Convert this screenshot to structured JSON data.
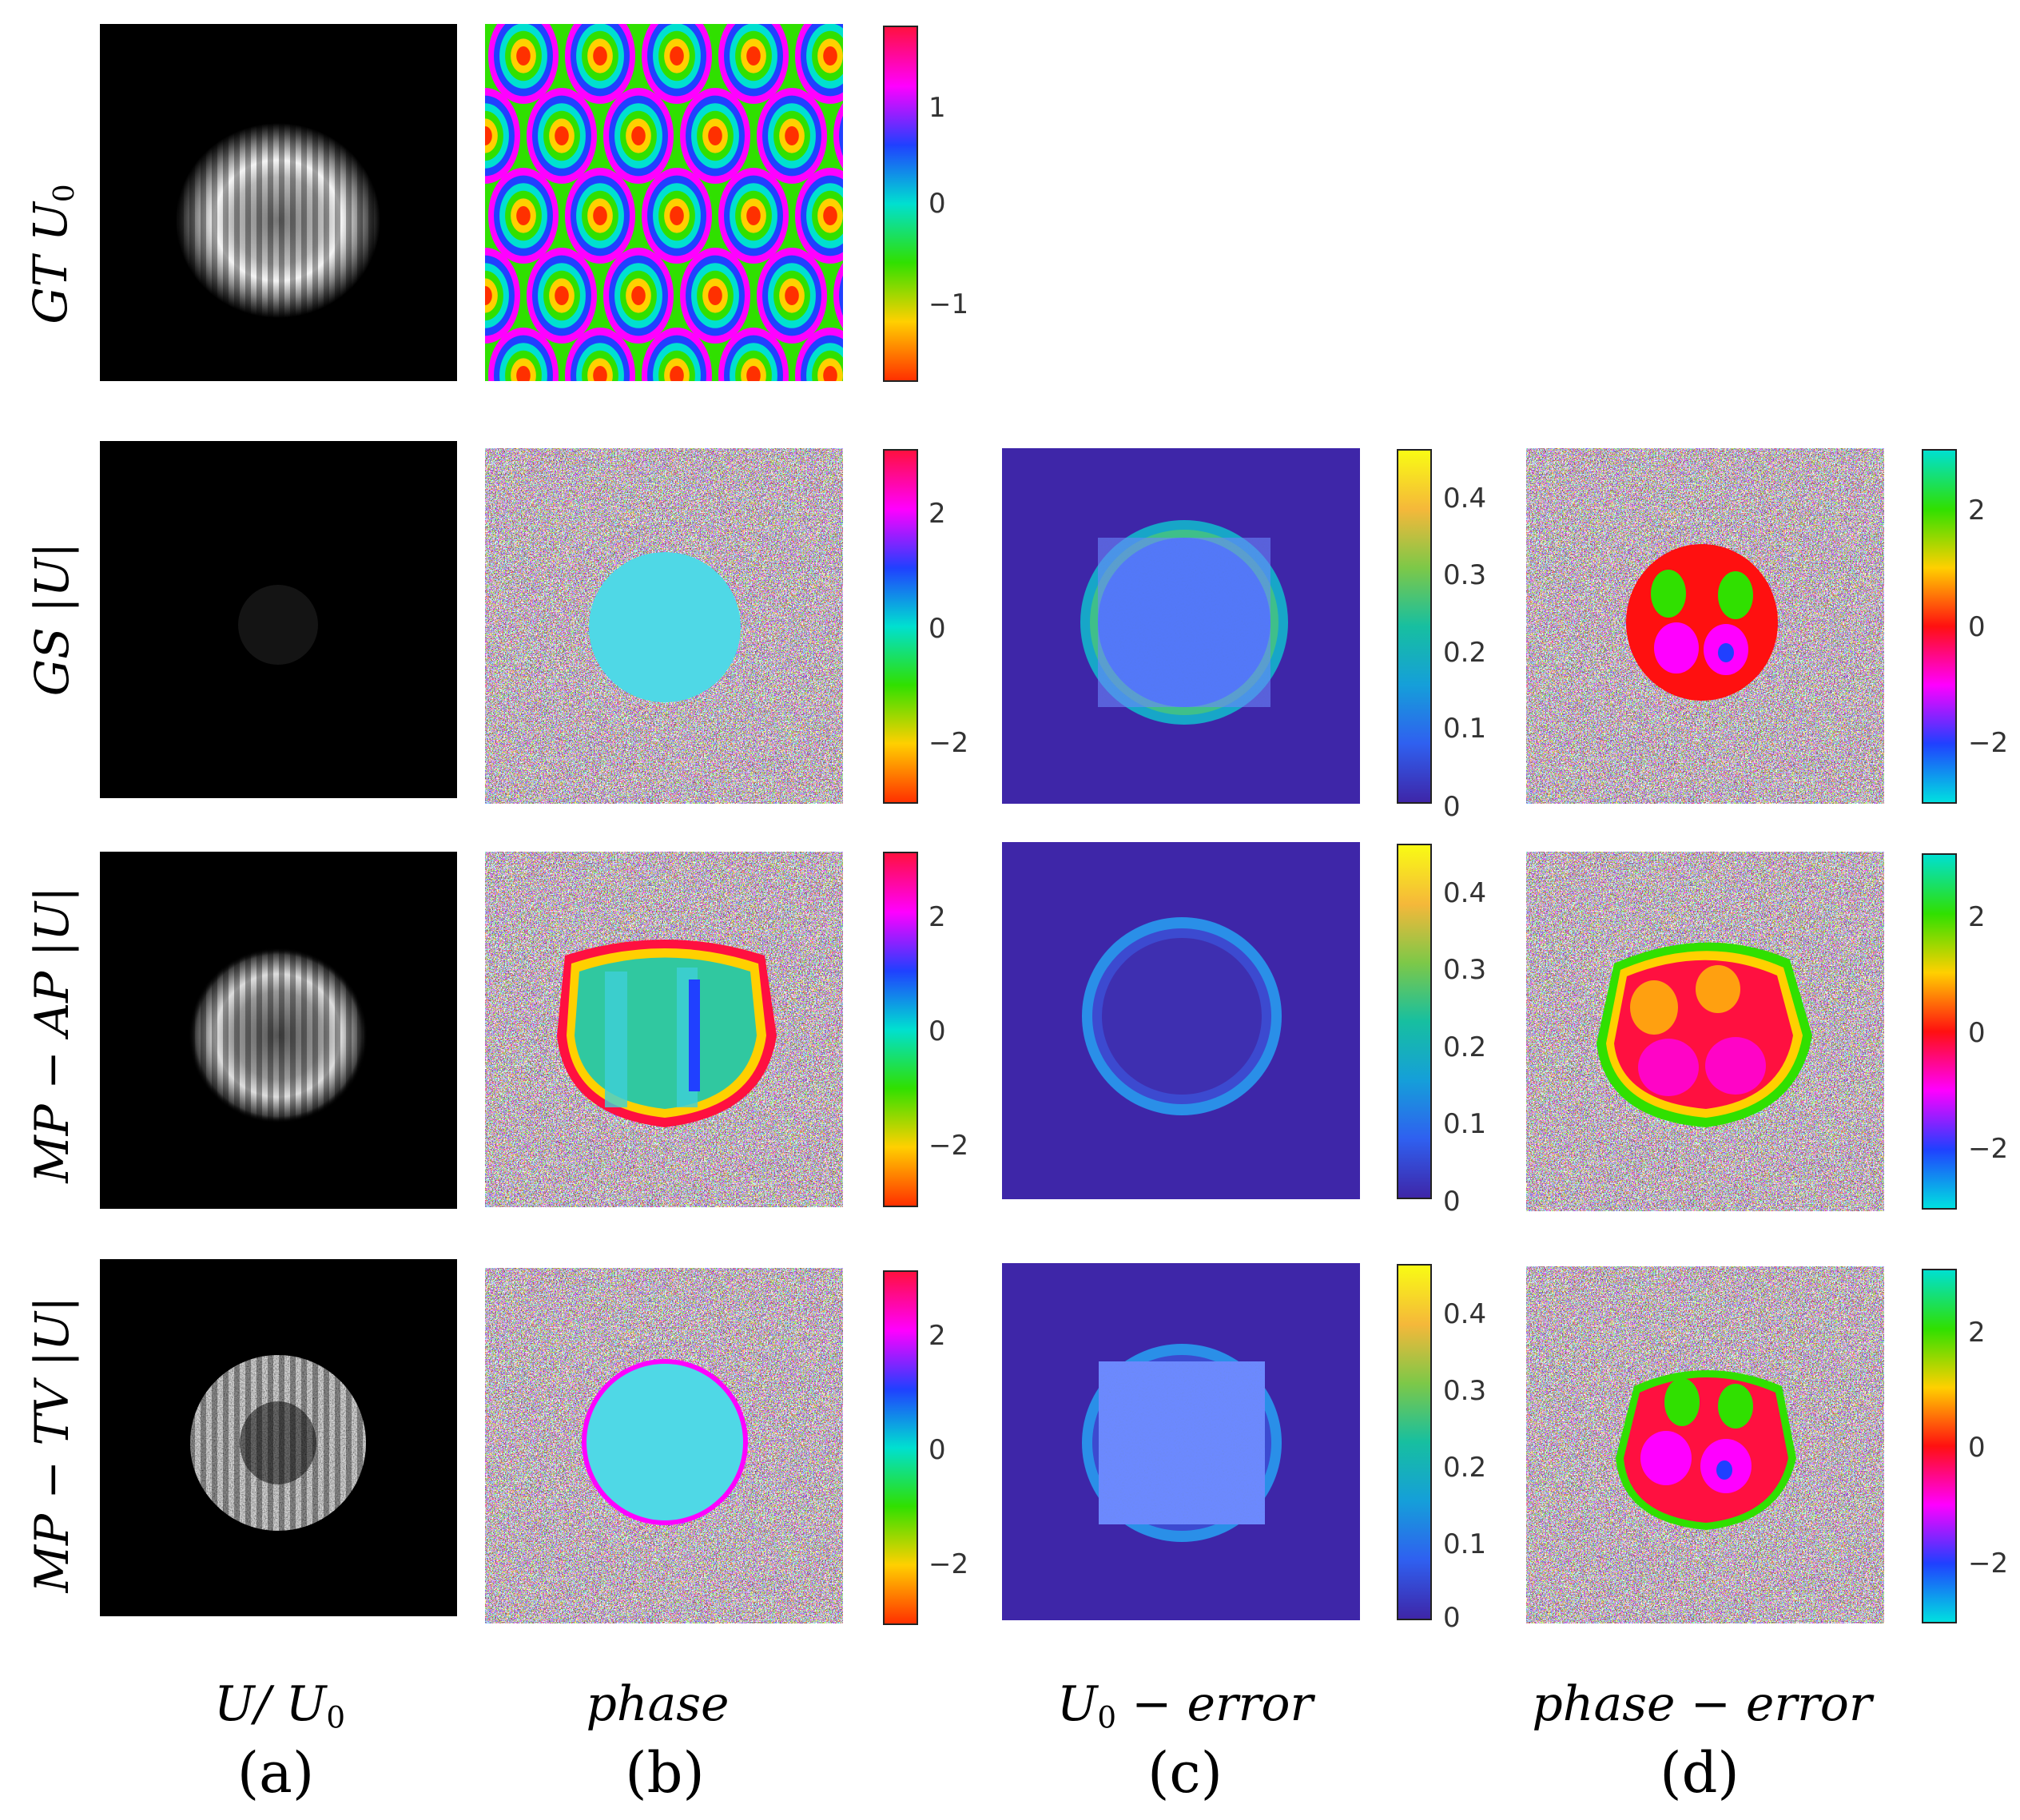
{
  "row_labels": {
    "gt": {
      "text": "GT U",
      "sub": "0"
    },
    "gs": {
      "text": "GS |U|",
      "sub": ""
    },
    "mpap": {
      "text": "MP − AP |U|",
      "sub": ""
    },
    "mptv": {
      "text": "MP − TV |U|",
      "sub": ""
    }
  },
  "column_labels": {
    "a": {
      "text": "U/ U",
      "sub": "0"
    },
    "b": {
      "text": "phase",
      "sub": ""
    },
    "c": {
      "text": "U",
      "sub": "0",
      "rest": " − error"
    },
    "d": {
      "text": "phase − error",
      "sub": ""
    }
  },
  "panel_letters": {
    "a": "(a)",
    "b": "(b)",
    "c": "(c)",
    "d": "(d)"
  },
  "colorbars": {
    "gt_phase": {
      "ticks": [
        "1",
        "0",
        "−1"
      ]
    },
    "gs_phase": {
      "ticks": [
        "2",
        "0",
        "−2"
      ]
    },
    "gs_error": {
      "ticks": [
        "0.4",
        "0.3",
        "0.2",
        "0.1",
        "0"
      ]
    },
    "gs_perr": {
      "ticks": [
        "2",
        "0",
        "−2"
      ]
    },
    "mpap_phase": {
      "ticks": [
        "2",
        "0",
        "−2"
      ]
    },
    "mpap_error": {
      "ticks": [
        "0.4",
        "0.3",
        "0.2",
        "0.1",
        "0"
      ]
    },
    "mpap_perr": {
      "ticks": [
        "2",
        "0",
        "−2"
      ]
    },
    "mptv_phase": {
      "ticks": [
        "2",
        "0",
        "−2"
      ]
    },
    "mptv_error": {
      "ticks": [
        "0.4",
        "0.3",
        "0.2",
        "0.1",
        "0"
      ]
    },
    "mptv_perr": {
      "ticks": [
        "2",
        "0",
        "−2"
      ]
    }
  },
  "colors": {
    "hsv_phase": [
      "#ff3000",
      "#ffd000",
      "#30e000",
      "#00e0d0",
      "#2040ff",
      "#ff00ff",
      "#ff1040"
    ],
    "parula": [
      "#3e26a8",
      "#2f60f0",
      "#159fd9",
      "#17bfa0",
      "#7dc848",
      "#f5b83a",
      "#f9fb14"
    ],
    "perr": [
      "#00e0e0",
      "#2040ff",
      "#ff00ff",
      "#ff1010",
      "#ffd000",
      "#30e000",
      "#00e0d0"
    ]
  }
}
